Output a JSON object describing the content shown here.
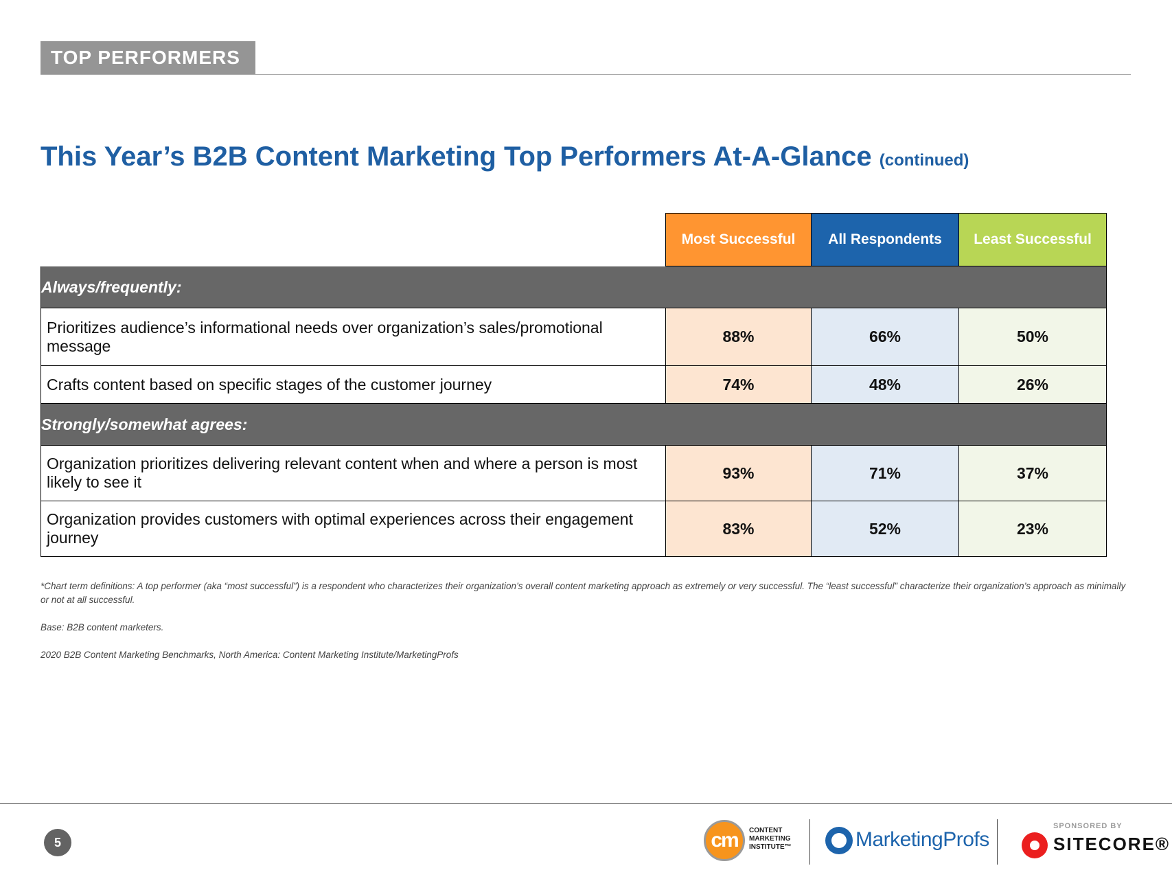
{
  "header": {
    "section_tag": "TOP PERFORMERS",
    "title": "This Year’s B2B Content Marketing Top Performers At-A-Glance",
    "title_suffix": "(continued)"
  },
  "table": {
    "columns": [
      "Most Successful",
      "All Respondents",
      "Least Successful"
    ],
    "sections": [
      {
        "label": "Always/frequently:",
        "rows": [
          {
            "label": "Prioritizes audience’s informational needs over organization’s sales/promotional message",
            "values": [
              "88%",
              "66%",
              "50%"
            ]
          },
          {
            "label": "Crafts content based on specific stages of the customer journey",
            "values": [
              "74%",
              "48%",
              "26%"
            ]
          }
        ]
      },
      {
        "label": "Strongly/somewhat agrees:",
        "rows": [
          {
            "label": "Organization prioritizes delivering relevant content when and where a person is most likely to see it",
            "values": [
              "93%",
              "71%",
              "37%"
            ]
          },
          {
            "label": "Organization provides customers with optimal experiences across their engagement journey",
            "values": [
              "83%",
              "52%",
              "23%"
            ]
          }
        ]
      }
    ]
  },
  "notes": {
    "definitions": "*Chart term definitions: A top performer (aka “most successful”) is a respondent who characterizes their organization’s overall content marketing approach as extremely or very successful. The “least successful” characterize their organization’s approach as minimally or not at all successful.",
    "base": "Base: B2B content marketers.",
    "source": "2020 B2B Content Marketing Benchmarks, North America: Content Marketing Institute/MarketingProfs"
  },
  "footer": {
    "page_number": "5",
    "cmi_logo_mark": "cm",
    "cmi_logo_line1": "CONTENT",
    "cmi_logo_line2": "MARKETING",
    "cmi_logo_line3": "INSTITUTE™",
    "marketingprofs_logo": "MarketingProfs",
    "sponsored_by": "SPONSORED BY",
    "sitecore_logo": "SITECORE®"
  },
  "colors": {
    "title_blue": "#1f5fa3",
    "most_successful": "#ff9531",
    "all_respondents": "#1d64ac",
    "least_successful": "#b8d655",
    "section_gray": "#676767"
  }
}
